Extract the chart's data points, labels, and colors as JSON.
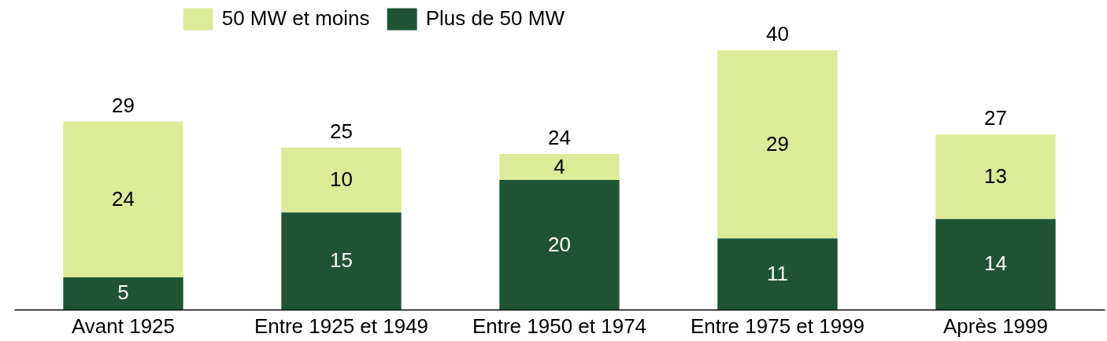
{
  "chart_data": {
    "type": "bar",
    "categories": [
      "Avant 1925",
      "Entre 1925 et 1949",
      "Entre 1950 et 1974",
      "Entre 1975 et 1999",
      "Après 1999"
    ],
    "series": [
      {
        "name": "Plus de 50 MW",
        "color": "#1e5434",
        "values": [
          5,
          15,
          20,
          11,
          14
        ]
      },
      {
        "name": "50 MW et moins",
        "color": "#dbeb98",
        "values": [
          24,
          10,
          4,
          29,
          13
        ]
      }
    ],
    "stacked": true,
    "ylim": [
      0,
      40
    ],
    "data_labels": true,
    "totals": [
      "29",
      "25",
      "24",
      "40",
      "27"
    ],
    "legend": "top",
    "tick_labels": "x"
  }
}
